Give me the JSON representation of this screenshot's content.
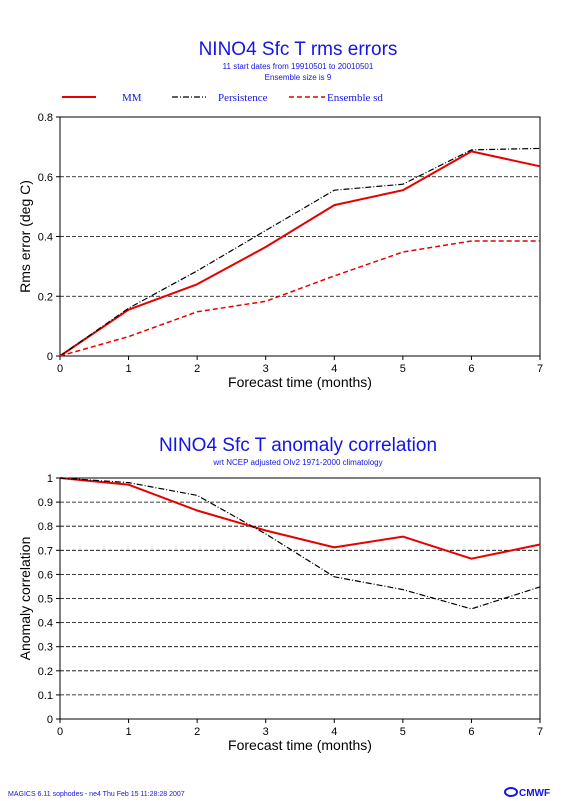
{
  "colors": {
    "title": "#1414e6",
    "mm": "#e60000",
    "persistence": "#000000",
    "ensemble_sd": "#e60000",
    "grid": "#000000"
  },
  "footer": {
    "text": "MAGICS 6.11 sophodes - ne4 Thu Feb 15 11:28:28 2007",
    "logo": "ECMWF"
  },
  "chart_data": [
    {
      "type": "line",
      "title": "NINO4 Sfc T rms errors",
      "subtitle_lines": [
        "11 start dates from 19910501 to 20010501",
        "Ensemble size is  9"
      ],
      "xlabel": "Forecast time (months)",
      "ylabel": "Rms error (deg C)",
      "xlim": [
        0,
        7
      ],
      "ylim": [
        0,
        0.8
      ],
      "x_ticks": [
        "0",
        "1",
        "2",
        "3",
        "4",
        "5",
        "6",
        "7"
      ],
      "y_ticks": [
        "0",
        "0.2",
        "0.4",
        "0.6",
        "0.8"
      ],
      "grid": "horizontal dashed",
      "legend_placement": "top",
      "x": [
        0,
        1,
        2,
        3,
        4,
        5,
        6,
        7
      ],
      "series": [
        {
          "name": "MM",
          "style": "solid",
          "color": "#e60000",
          "values": [
            0,
            0.155,
            0.24,
            0.365,
            0.505,
            0.555,
            0.685,
            0.635
          ]
        },
        {
          "name": "Persistence",
          "style": "dashdot",
          "color": "#000000",
          "values": [
            0,
            0.16,
            0.285,
            0.42,
            0.555,
            0.575,
            0.69,
            0.695
          ]
        },
        {
          "name": "Ensemble sd",
          "style": "dashed",
          "color": "#e60000",
          "values": [
            0,
            0.065,
            0.148,
            0.183,
            0.268,
            0.348,
            0.385,
            0.385
          ]
        }
      ]
    },
    {
      "type": "line",
      "title": "NINO4 Sfc T anomaly correlation",
      "subtitle_lines": [
        "wrt NCEP adjusted OIv2 1971-2000 climatology"
      ],
      "xlabel": "Forecast time (months)",
      "ylabel": "Anomaly correlation",
      "xlim": [
        0,
        7
      ],
      "ylim": [
        0,
        1
      ],
      "x_ticks": [
        "0",
        "1",
        "2",
        "3",
        "4",
        "5",
        "6",
        "7"
      ],
      "y_ticks": [
        "0",
        "0.1",
        "0.2",
        "0.3",
        "0.4",
        "0.5",
        "0.6",
        "0.7",
        "0.8",
        "0.9",
        "1"
      ],
      "grid": "horizontal dashed",
      "x": [
        0,
        1,
        2,
        3,
        4,
        5,
        6,
        7
      ],
      "series": [
        {
          "style": "solid",
          "color": "#e60000",
          "values": [
            1,
            0.972,
            0.865,
            0.782,
            0.712,
            0.757,
            0.665,
            0.724
          ]
        },
        {
          "style": "dashdot",
          "color": "#000000",
          "values": [
            1,
            0.981,
            0.928,
            0.768,
            0.59,
            0.537,
            0.457,
            0.548
          ]
        }
      ]
    }
  ]
}
